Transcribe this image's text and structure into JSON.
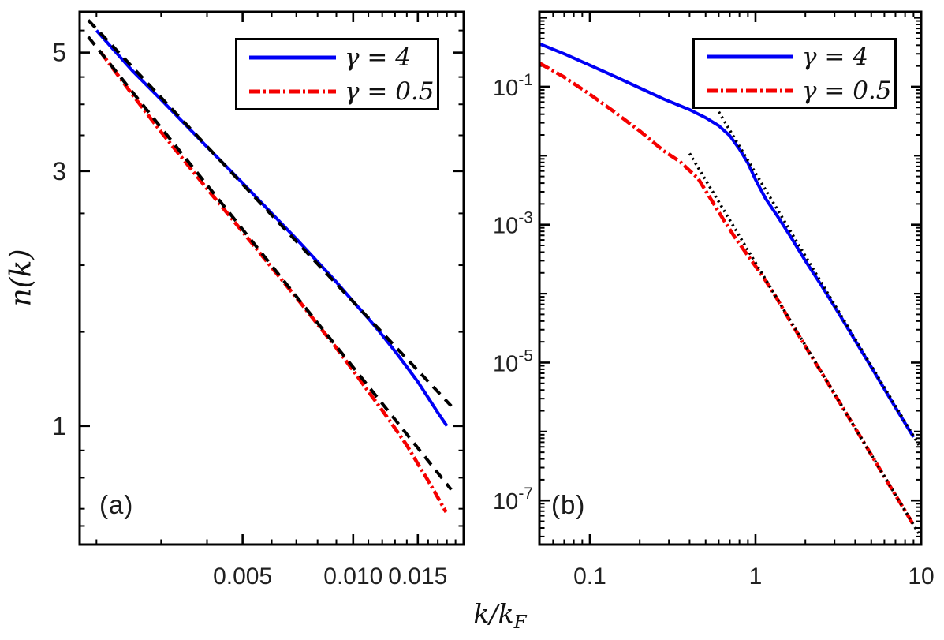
{
  "figure": {
    "ylabel": "n(k)",
    "xlabel": {
      "main": "k/k",
      "sub": "F"
    },
    "background": "#ffffff",
    "frame_color": "#000000",
    "text_color": "#202020"
  },
  "legend": {
    "entries": [
      {
        "label": "γ = 4",
        "color": "#0000f5",
        "style": "solid"
      },
      {
        "label": "γ = 0.5",
        "color": "#f50000",
        "style": "dashdot"
      }
    ]
  },
  "chart_data": [
    {
      "type": "line",
      "panel_tag": "(a)",
      "x_scale": "log",
      "y_scale": "log",
      "x_range": [
        0.0018,
        0.02
      ],
      "y_range": [
        0.6,
        5.96
      ],
      "x_ticks": [
        {
          "value": 0.005,
          "label": "0.005"
        },
        {
          "value": 0.01,
          "label": "0.010"
        },
        {
          "value": 0.015,
          "label": "0.015"
        }
      ],
      "x_minor": [
        0.002,
        0.003,
        0.004,
        0.006,
        0.007,
        0.008,
        0.009,
        0.011,
        0.012,
        0.013,
        0.014,
        0.016,
        0.017,
        0.018,
        0.019
      ],
      "y_ticks": [
        {
          "value": 5,
          "label": "5"
        },
        {
          "value": 3,
          "label": "3"
        },
        {
          "value": 1,
          "label": "1"
        }
      ],
      "y_minor": [
        0.65,
        0.7,
        0.8,
        0.9,
        1.5,
        2,
        2.5,
        3.5,
        4,
        4.5,
        5.5
      ],
      "series": [
        {
          "name": "gamma-4",
          "legend": "γ = 4",
          "color": "#0000f5",
          "style": "solid",
          "width": 4,
          "points": [
            [
              0.002,
              5.5
            ],
            [
              0.0025,
              4.63
            ],
            [
              0.003,
              4.08
            ],
            [
              0.004,
              3.33
            ],
            [
              0.005,
              2.85
            ],
            [
              0.006,
              2.5
            ],
            [
              0.007,
              2.24
            ],
            [
              0.008,
              2.03
            ],
            [
              0.009,
              1.86
            ],
            [
              0.01,
              1.71
            ],
            [
              0.011,
              1.59
            ],
            [
              0.012,
              1.48
            ],
            [
              0.013,
              1.38
            ],
            [
              0.014,
              1.29
            ],
            [
              0.015,
              1.21
            ],
            [
              0.016,
              1.13
            ],
            [
              0.017,
              1.06
            ],
            [
              0.018,
              1.0
            ]
          ]
        },
        {
          "name": "gamma-0.5",
          "legend": "γ = 0.5",
          "color": "#f50000",
          "style": "dashdot",
          "width": 4.5,
          "points": [
            [
              0.00205,
              5.02
            ],
            [
              0.0025,
              4.18
            ],
            [
              0.003,
              3.55
            ],
            [
              0.004,
              2.78
            ],
            [
              0.005,
              2.31
            ],
            [
              0.006,
              1.98
            ],
            [
              0.007,
              1.74
            ],
            [
              0.008,
              1.55
            ],
            [
              0.009,
              1.4
            ],
            [
              0.01,
              1.27
            ],
            [
              0.011,
              1.16
            ],
            [
              0.012,
              1.07
            ],
            [
              0.013,
              0.99
            ],
            [
              0.014,
              0.92
            ],
            [
              0.015,
              0.85
            ],
            [
              0.016,
              0.79
            ],
            [
              0.017,
              0.735
            ],
            [
              0.0179,
              0.69
            ]
          ]
        },
        {
          "name": "power-law-fit-gamma-4",
          "color": "#000000",
          "style": "dashed",
          "width": 4,
          "points": [
            [
              0.0019,
              5.75
            ],
            [
              0.0185,
              1.09
            ]
          ]
        },
        {
          "name": "power-law-fit-gamma-0.5",
          "color": "#000000",
          "style": "dashed",
          "width": 4,
          "points": [
            [
              0.0019,
              5.35
            ],
            [
              0.0185,
              0.76
            ]
          ]
        }
      ]
    },
    {
      "type": "line",
      "panel_tag": "(b)",
      "x_scale": "log",
      "y_scale": "log",
      "x_range": [
        0.0496,
        10
      ],
      "y_range": [
        2.3e-08,
        1.22
      ],
      "x_ticks": [
        {
          "value": 0.1,
          "label": "0.1"
        },
        {
          "value": 1,
          "label": "1"
        },
        {
          "value": 10,
          "label": "10"
        }
      ],
      "x_minor": [
        0.06,
        0.07,
        0.08,
        0.09,
        0.2,
        0.3,
        0.4,
        0.5,
        0.6,
        0.7,
        0.8,
        0.9,
        2,
        3,
        4,
        5,
        6,
        7,
        8,
        9
      ],
      "y_ticks": [
        {
          "value": 0.1,
          "label": "10^-1"
        },
        {
          "value": 0.001,
          "label": "10^-3"
        },
        {
          "value": 1e-05,
          "label": "10^-5"
        },
        {
          "value": 1e-07,
          "label": "10^-7"
        }
      ],
      "y_minor": "log-auto",
      "y_minor_decades": [
        1,
        0.01,
        0.0001,
        1e-06
      ],
      "series": [
        {
          "name": "gamma-4",
          "legend": "γ = 4",
          "color": "#0000f5",
          "style": "solid",
          "width": 4,
          "points": [
            [
              0.0496,
              0.42
            ],
            [
              0.07,
              0.3
            ],
            [
              0.1,
              0.205
            ],
            [
              0.14,
              0.143
            ],
            [
              0.2,
              0.096
            ],
            [
              0.28,
              0.066
            ],
            [
              0.4,
              0.0465
            ],
            [
              0.5,
              0.0355
            ],
            [
              0.6,
              0.0272
            ],
            [
              0.7,
              0.0195
            ],
            [
              0.8,
              0.0125
            ],
            [
              0.9,
              0.0078
            ],
            [
              1.0,
              0.0045
            ],
            [
              1.15,
              0.0024
            ],
            [
              1.35,
              0.00135
            ],
            [
              1.6,
              0.00072
            ],
            [
              2.0,
              0.0003
            ],
            [
              2.5,
              0.000131
            ],
            [
              3.2,
              5.05e-05
            ],
            [
              4.0,
              2.08e-05
            ],
            [
              5.0,
              8.6e-06
            ],
            [
              6.5,
              3e-06
            ],
            [
              8.0,
              1.32e-06
            ],
            [
              9.0,
              8.3e-07
            ]
          ]
        },
        {
          "name": "gamma-0.5",
          "legend": "γ = 0.5",
          "color": "#f50000",
          "style": "dashdot",
          "width": 4.5,
          "points": [
            [
              0.0496,
              0.22
            ],
            [
              0.07,
              0.138
            ],
            [
              0.1,
              0.0775
            ],
            [
              0.14,
              0.0435
            ],
            [
              0.2,
              0.0228
            ],
            [
              0.28,
              0.0117
            ],
            [
              0.35,
              0.0082
            ],
            [
              0.45,
              0.0047
            ],
            [
              0.55,
              0.00215
            ],
            [
              0.65,
              0.00112
            ],
            [
              0.75,
              0.00066
            ],
            [
              0.85,
              0.00043
            ],
            [
              1.0,
              0.00025
            ],
            [
              1.15,
              0.000155
            ],
            [
              1.35,
              8.4e-05
            ],
            [
              1.6,
              4.2e-05
            ],
            [
              2.0,
              1.72e-05
            ],
            [
              2.5,
              7.2e-06
            ],
            [
              3.2,
              2.7e-06
            ],
            [
              4.0,
              1.12e-06
            ],
            [
              5.0,
              4.6e-07
            ],
            [
              6.5,
              1.6e-07
            ],
            [
              8.0,
              7.1e-08
            ],
            [
              9.0,
              4.4e-08
            ]
          ]
        },
        {
          "name": "k4-tail-gamma-4",
          "color": "#000000",
          "style": "dotted",
          "width": 3.6,
          "points": [
            [
              0.6,
              0.0432
            ],
            [
              9.8,
              6.1e-07
            ]
          ]
        },
        {
          "name": "k4-tail-gamma-0.5",
          "color": "#000000",
          "style": "dotted",
          "width": 3.6,
          "points": [
            [
              0.4,
              0.0108
            ],
            [
              9.7,
              3.3e-08
            ]
          ]
        }
      ]
    }
  ]
}
